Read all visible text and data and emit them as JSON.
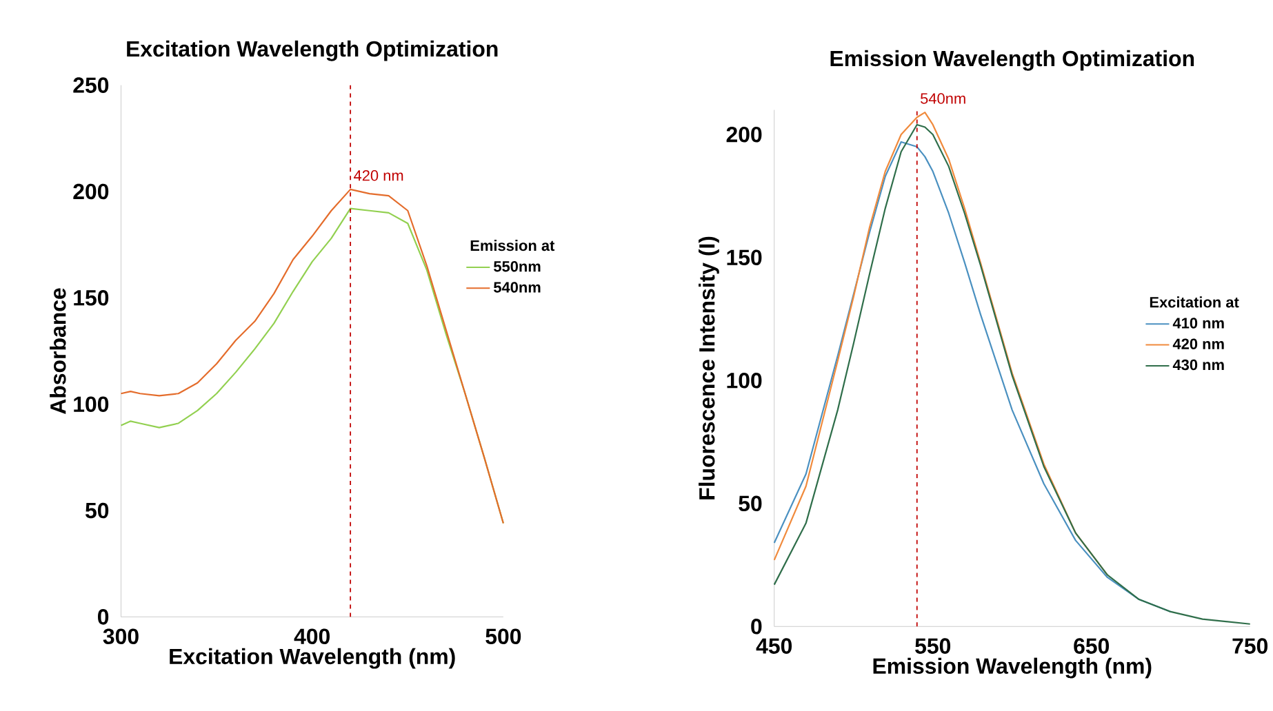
{
  "chart_data": [
    {
      "type": "line",
      "title": "Excitation Wavelength Optimization",
      "xlabel": "Excitation Wavelength (nm)",
      "ylabel": "Absorbance",
      "legend_title": "Emission at",
      "legend": "right",
      "xlim": [
        300,
        500
      ],
      "xticks": [
        300,
        400,
        500
      ],
      "ylim": [
        0,
        250
      ],
      "yticks": [
        0,
        50,
        100,
        150,
        200,
        250
      ],
      "x": [
        300,
        305,
        310,
        320,
        330,
        340,
        350,
        360,
        370,
        380,
        390,
        400,
        410,
        420,
        430,
        440,
        450,
        460,
        470,
        480,
        490,
        500
      ],
      "series": [
        {
          "name": "550nm",
          "color": "#92d050",
          "values": [
            90,
            92,
            91,
            89,
            91,
            97,
            105,
            115,
            126,
            138,
            153,
            167,
            178,
            192,
            191,
            190,
            185,
            163,
            133,
            105,
            75,
            44
          ]
        },
        {
          "name": "540nm",
          "color": "#e46c2b",
          "values": [
            105,
            106,
            105,
            104,
            105,
            110,
            119,
            130,
            139,
            152,
            168,
            179,
            191,
            201,
            199,
            198,
            191,
            165,
            135,
            105,
            75,
            44
          ]
        }
      ],
      "ref_lines": [
        {
          "axis": "x",
          "value": 420,
          "label": "420 nm",
          "color": "#c00000",
          "line_style": "dashed"
        }
      ]
    },
    {
      "type": "line",
      "title": "Emission Wavelength Optimization",
      "xlabel": "Emission Wavelength (nm)",
      "ylabel": "Fluorescence Intensity (I)",
      "legend_title": "Excitation at",
      "legend": "right",
      "xlim": [
        450,
        750
      ],
      "xticks": [
        450,
        550,
        650,
        750
      ],
      "ylim": [
        0,
        210
      ],
      "yticks": [
        0,
        50,
        100,
        150,
        200
      ],
      "x": [
        450,
        470,
        490,
        500,
        510,
        520,
        530,
        540,
        545,
        550,
        560,
        570,
        580,
        600,
        620,
        640,
        660,
        680,
        700,
        720,
        750
      ],
      "series": [
        {
          "name": "410 nm",
          "color": "#4a90c0",
          "values": [
            34,
            62,
            110,
            135,
            160,
            183,
            197,
            195,
            191,
            185,
            168,
            148,
            127,
            88,
            58,
            35,
            20,
            11,
            6,
            null,
            null
          ]
        },
        {
          "name": "420 nm",
          "color": "#f08a3c",
          "values": [
            27,
            57,
            108,
            134,
            162,
            185,
            200,
            207,
            209,
            204,
            190,
            170,
            148,
            103,
            66,
            38,
            21,
            null,
            null,
            null,
            null
          ]
        },
        {
          "name": "430 nm",
          "color": "#2f6e4a",
          "values": [
            17,
            42,
            88,
            115,
            143,
            170,
            193,
            204,
            203,
            200,
            187,
            168,
            147,
            102,
            65,
            38,
            21,
            11,
            6,
            3,
            1
          ]
        }
      ],
      "ref_lines": [
        {
          "axis": "x",
          "value": 540,
          "label": "540nm",
          "color": "#c00000",
          "line_style": "dashed"
        }
      ]
    }
  ]
}
